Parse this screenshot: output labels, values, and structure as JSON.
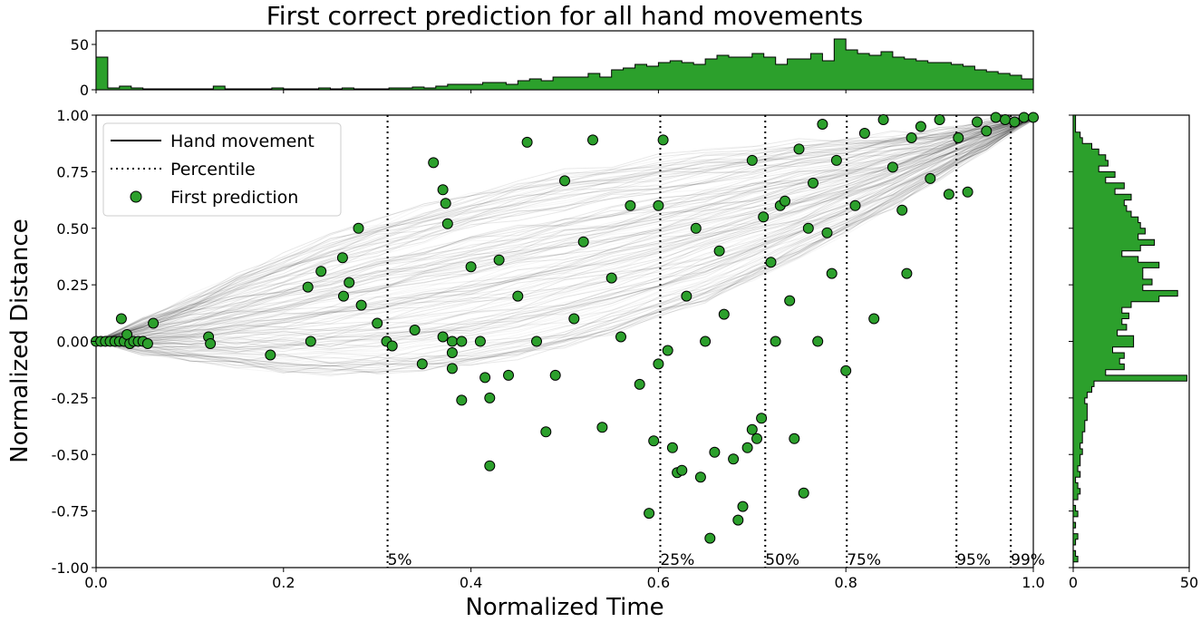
{
  "chart_data": {
    "type": "scatter",
    "title": "First correct prediction for all hand movements",
    "xlabel": "Normalized Time",
    "ylabel": "Normalized Distance",
    "xlim": [
      0.0,
      1.0
    ],
    "ylim": [
      -1.0,
      1.0
    ],
    "xticks": [
      "0.0",
      "0.2",
      "0.4",
      "0.6",
      "0.8",
      "1.0"
    ],
    "yticks": [
      "-1.00",
      "-0.75",
      "-0.50",
      "-0.25",
      "0.00",
      "0.25",
      "0.50",
      "0.75",
      "1.00"
    ],
    "legend": {
      "placement": "top-left",
      "entries": [
        "Hand movement",
        "Percentile",
        "First prediction"
      ]
    },
    "colors": {
      "points": "#2ca02c",
      "hist": "#2ca02c",
      "lines": "#000000"
    },
    "percentiles": [
      {
        "label": "5%",
        "x": 0.311
      },
      {
        "label": "25%",
        "x": 0.602
      },
      {
        "label": "50%",
        "x": 0.714
      },
      {
        "label": "75%",
        "x": 0.801
      },
      {
        "label": "95%",
        "x": 0.918
      },
      {
        "label": "99%",
        "x": 0.976
      }
    ],
    "first_prediction_points": [
      [
        0.0,
        0.0
      ],
      [
        0.005,
        0.0
      ],
      [
        0.01,
        0.0
      ],
      [
        0.015,
        0.0
      ],
      [
        0.02,
        0.0
      ],
      [
        0.025,
        0.0
      ],
      [
        0.027,
        0.1
      ],
      [
        0.03,
        0.0
      ],
      [
        0.033,
        0.03
      ],
      [
        0.036,
        -0.01
      ],
      [
        0.04,
        0.0
      ],
      [
        0.045,
        0.0
      ],
      [
        0.05,
        0.0
      ],
      [
        0.055,
        -0.01
      ],
      [
        0.061,
        0.08
      ],
      [
        0.12,
        0.02
      ],
      [
        0.122,
        -0.01
      ],
      [
        0.186,
        -0.06
      ],
      [
        0.226,
        0.24
      ],
      [
        0.229,
        0.0
      ],
      [
        0.24,
        0.31
      ],
      [
        0.263,
        0.37
      ],
      [
        0.264,
        0.2
      ],
      [
        0.27,
        0.26
      ],
      [
        0.283,
        0.16
      ],
      [
        0.28,
        0.5
      ],
      [
        0.3,
        0.08
      ],
      [
        0.31,
        0.0
      ],
      [
        0.316,
        -0.02
      ],
      [
        0.34,
        0.05
      ],
      [
        0.348,
        -0.1
      ],
      [
        0.36,
        0.79
      ],
      [
        0.37,
        0.67
      ],
      [
        0.37,
        0.02
      ],
      [
        0.373,
        0.61
      ],
      [
        0.375,
        0.52
      ],
      [
        0.38,
        0.0
      ],
      [
        0.38,
        -0.05
      ],
      [
        0.38,
        -0.12
      ],
      [
        0.39,
        0.0
      ],
      [
        0.39,
        -0.26
      ],
      [
        0.4,
        0.33
      ],
      [
        0.41,
        0.0
      ],
      [
        0.415,
        -0.16
      ],
      [
        0.42,
        -0.55
      ],
      [
        0.42,
        -0.25
      ],
      [
        0.43,
        0.36
      ],
      [
        0.44,
        -0.15
      ],
      [
        0.45,
        0.2
      ],
      [
        0.46,
        0.88
      ],
      [
        0.47,
        0.0
      ],
      [
        0.48,
        -0.4
      ],
      [
        0.49,
        -0.15
      ],
      [
        0.5,
        0.71
      ],
      [
        0.51,
        0.1
      ],
      [
        0.52,
        0.44
      ],
      [
        0.53,
        0.89
      ],
      [
        0.54,
        -0.38
      ],
      [
        0.55,
        0.28
      ],
      [
        0.56,
        0.02
      ],
      [
        0.57,
        0.6
      ],
      [
        0.58,
        -0.19
      ],
      [
        0.59,
        -0.76
      ],
      [
        0.595,
        -0.44
      ],
      [
        0.6,
        0.6
      ],
      [
        0.6,
        -0.1
      ],
      [
        0.605,
        0.89
      ],
      [
        0.61,
        -0.04
      ],
      [
        0.615,
        -0.47
      ],
      [
        0.62,
        -0.58
      ],
      [
        0.625,
        -0.57
      ],
      [
        0.63,
        0.2
      ],
      [
        0.64,
        0.5
      ],
      [
        0.645,
        -0.6
      ],
      [
        0.65,
        0.0
      ],
      [
        0.655,
        -0.87
      ],
      [
        0.66,
        -0.49
      ],
      [
        0.665,
        0.4
      ],
      [
        0.67,
        0.12
      ],
      [
        0.68,
        -0.52
      ],
      [
        0.685,
        -0.79
      ],
      [
        0.69,
        -0.73
      ],
      [
        0.695,
        -0.47
      ],
      [
        0.7,
        0.8
      ],
      [
        0.7,
        -0.39
      ],
      [
        0.705,
        -0.43
      ],
      [
        0.71,
        -0.34
      ],
      [
        0.712,
        0.55
      ],
      [
        0.72,
        0.35
      ],
      [
        0.725,
        0.0
      ],
      [
        0.73,
        0.6
      ],
      [
        0.735,
        0.62
      ],
      [
        0.74,
        0.18
      ],
      [
        0.745,
        -0.43
      ],
      [
        0.75,
        0.85
      ],
      [
        0.755,
        -0.67
      ],
      [
        0.76,
        0.5
      ],
      [
        0.765,
        0.7
      ],
      [
        0.77,
        0.0
      ],
      [
        0.775,
        0.96
      ],
      [
        0.78,
        0.48
      ],
      [
        0.785,
        0.3
      ],
      [
        0.79,
        0.8
      ],
      [
        0.8,
        -0.13
      ],
      [
        0.81,
        0.6
      ],
      [
        0.82,
        0.92
      ],
      [
        0.83,
        0.1
      ],
      [
        0.84,
        0.98
      ],
      [
        0.85,
        0.77
      ],
      [
        0.86,
        0.58
      ],
      [
        0.865,
        0.3
      ],
      [
        0.87,
        0.9
      ],
      [
        0.88,
        0.95
      ],
      [
        0.89,
        0.72
      ],
      [
        0.9,
        0.98
      ],
      [
        0.91,
        0.65
      ],
      [
        0.92,
        0.9
      ],
      [
        0.93,
        0.66
      ],
      [
        0.94,
        0.97
      ],
      [
        0.95,
        0.93
      ],
      [
        0.96,
        0.99
      ],
      [
        0.97,
        0.98
      ],
      [
        0.98,
        0.97
      ],
      [
        0.99,
        0.99
      ],
      [
        1.0,
        0.99
      ]
    ],
    "top_histogram": {
      "ylim": [
        0,
        65
      ],
      "yticks": [
        "0",
        "50"
      ],
      "bin_width": 0.0125,
      "counts": [
        36,
        2,
        4,
        2,
        1,
        1,
        1,
        1,
        1,
        1,
        4,
        1,
        1,
        1,
        1,
        2,
        1,
        1,
        1,
        2,
        1,
        2,
        1,
        1,
        1,
        2,
        2,
        3,
        2,
        4,
        6,
        6,
        6,
        8,
        8,
        6,
        10,
        12,
        10,
        14,
        14,
        14,
        18,
        14,
        22,
        24,
        28,
        26,
        30,
        32,
        30,
        28,
        34,
        38,
        36,
        36,
        40,
        36,
        28,
        34,
        34,
        40,
        32,
        56,
        44,
        40,
        38,
        42,
        36,
        34,
        32,
        30,
        30,
        28,
        26,
        22,
        20,
        18,
        16,
        12,
        8
      ]
    },
    "right_histogram": {
      "xlim": [
        0,
        50
      ],
      "xticks": [
        "0",
        "50"
      ],
      "bin_width": 0.025,
      "counts": [
        0,
        2,
        1,
        0,
        1,
        2,
        0,
        1,
        0,
        2,
        1,
        0,
        2,
        3,
        2,
        1,
        3,
        2,
        3,
        3,
        4,
        3,
        4,
        4,
        5,
        5,
        6,
        6,
        6,
        5,
        6,
        8,
        9,
        49,
        14,
        22,
        20,
        22,
        17,
        26,
        26,
        19,
        23,
        21,
        24,
        21,
        25,
        37,
        45,
        30,
        34,
        30,
        30,
        37,
        28,
        21,
        29,
        35,
        28,
        31,
        29,
        28,
        25,
        23,
        22,
        25,
        18,
        22,
        14,
        18,
        11,
        15,
        14,
        11,
        8,
        4,
        3,
        1,
        1,
        1,
        0
      ]
    }
  }
}
